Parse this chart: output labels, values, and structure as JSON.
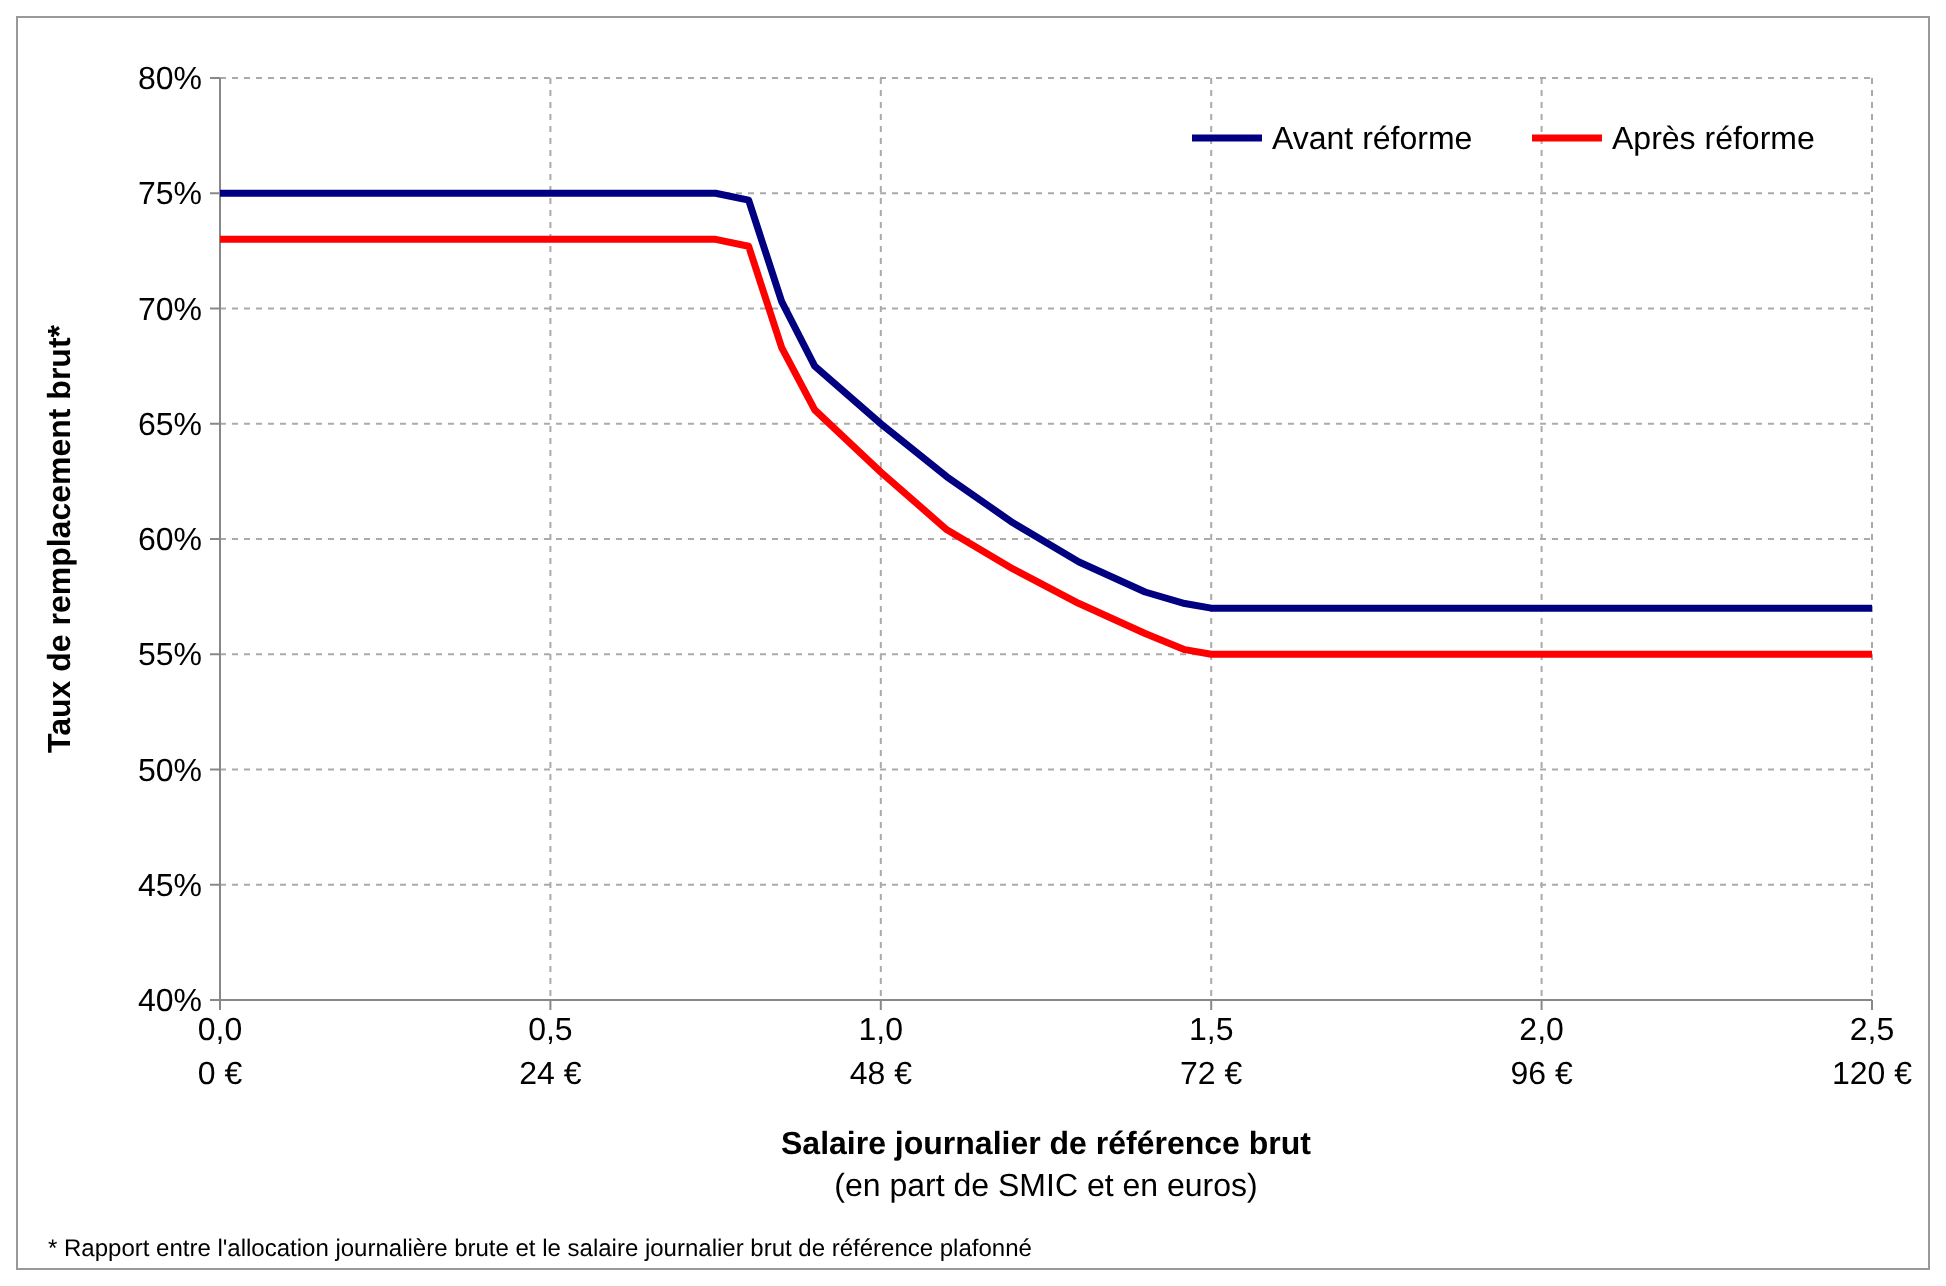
{
  "chart_data": {
    "type": "line",
    "xlabel": "Salaire journalier de référence brut",
    "subtitle": "(en part de SMIC et en euros)",
    "ylabel": "Taux de remplacement brut*",
    "annotations": [
      "* Rapport entre l'allocation journalière brute et le salaire journalier brut de référence plafonné"
    ],
    "xlim": [
      0,
      2.5
    ],
    "xticks": [
      {
        "value": 0,
        "label": "0,0"
      },
      {
        "value": 0.5,
        "label": "0,5"
      },
      {
        "value": 1,
        "label": "1,0"
      },
      {
        "value": 1.5,
        "label": "1,5"
      },
      {
        "value": 2,
        "label": "2,0"
      },
      {
        "value": 2.5,
        "label": "2,5"
      }
    ],
    "x2lim": [
      0,
      120
    ],
    "x2ticks": [
      {
        "value": 0,
        "label": "0 €"
      },
      {
        "value": 24,
        "label": "24 €"
      },
      {
        "value": 48,
        "label": "48 €"
      },
      {
        "value": 72,
        "label": "72 €"
      },
      {
        "value": 96,
        "label": "96 €"
      },
      {
        "value": 120,
        "label": "120 €"
      }
    ],
    "ylim": [
      40,
      80
    ],
    "yticks": [
      {
        "value": 40,
        "label": "40%"
      },
      {
        "value": 45,
        "label": "45%"
      },
      {
        "value": 50,
        "label": "50%"
      },
      {
        "value": 55,
        "label": "55%"
      },
      {
        "value": 60,
        "label": "60%"
      },
      {
        "value": 65,
        "label": "65%"
      },
      {
        "value": 70,
        "label": "70%"
      },
      {
        "value": 75,
        "label": "75%"
      },
      {
        "value": 80,
        "label": "80%"
      }
    ],
    "grid": true,
    "legend": "top right",
    "line_style": "solid",
    "marker": "none",
    "series": [
      {
        "name": "Avant réforme",
        "color": "#000080",
        "x": [
          0,
          0.75,
          0.8,
          0.85,
          0.9,
          1.0,
          1.1,
          1.2,
          1.3,
          1.4,
          1.46,
          1.5,
          2.5
        ],
        "values": [
          75,
          75,
          74.7,
          70.3,
          67.5,
          65,
          62.7,
          60.7,
          59,
          57.7,
          57.2,
          57,
          57
        ]
      },
      {
        "name": "Après réforme",
        "color": "#ff0000",
        "x": [
          0,
          0.75,
          0.8,
          0.85,
          0.9,
          1.0,
          1.1,
          1.2,
          1.3,
          1.4,
          1.46,
          1.5,
          2.5
        ],
        "values": [
          73,
          73,
          72.7,
          68.3,
          65.6,
          62.9,
          60.4,
          58.7,
          57.2,
          55.9,
          55.2,
          55,
          55
        ]
      }
    ]
  }
}
